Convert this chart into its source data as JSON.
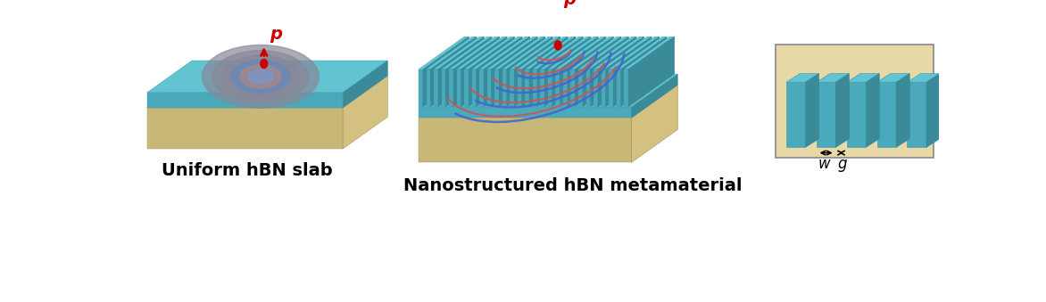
{
  "bg_color": "#ffffff",
  "teal_top": "#62c4d0",
  "teal_side": "#4aaabb",
  "teal_dark": "#3a8a9a",
  "teal_front": "#4aaabb",
  "substrate_top": "#e8d8a8",
  "substrate_side": "#d4c080",
  "substrate_front": "#c8b878",
  "label1": "Uniform hBN slab",
  "label2": "Nanostructured hBN metamaterial",
  "label_p": "p",
  "label_w": "w",
  "label_g": "g",
  "arrow_color": "#cc0000",
  "ring_colors_filled": [
    "#7777aa88",
    "#9999bb88",
    "#aaaacc88",
    "#8888bb88",
    "#6666aa88"
  ],
  "hyperbolic_blue": "#4466cc",
  "hyperbolic_red": "#cc5555",
  "title_fontsize": 14,
  "fig_width": 11.72,
  "fig_height": 3.39
}
